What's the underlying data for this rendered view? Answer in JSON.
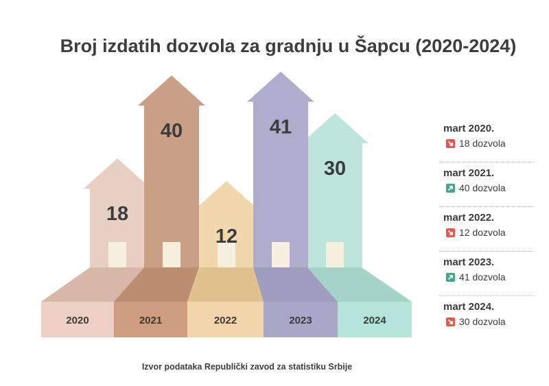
{
  "title": "Broj izdatih dozvola za gradnju u Šapcu (2020-2024)",
  "chart_data": {
    "type": "bar",
    "categories": [
      "2020",
      "2021",
      "2022",
      "2023",
      "2024"
    ],
    "values": [
      18,
      40,
      12,
      41,
      30
    ]
  },
  "colors": {
    "bars": [
      "#e8cfc4",
      "#c9a085",
      "#f0d8ac",
      "#aeadcc",
      "#bde5dc"
    ],
    "floor_top": [
      "#d8b6a8",
      "#bc8d70",
      "#e1c18e",
      "#9e9cbf",
      "#a4d4c8"
    ],
    "floor_front": [
      "#ecd0c5",
      "#ce9c7e",
      "#f2d5aa",
      "#a9a7c8",
      "#b6e3d9"
    ],
    "door": "#f7efe0",
    "down": "#e05a54",
    "up": "#4aa392"
  },
  "side": [
    {
      "label": "mart 2020.",
      "text": "18 dozvola",
      "trend": "down"
    },
    {
      "label": "mart 2021.",
      "text": "40 dozvola",
      "trend": "up"
    },
    {
      "label": "mart 2022.",
      "text": "12 dozvola",
      "trend": "down"
    },
    {
      "label": "mart 2023.",
      "text": "41 dozvola",
      "trend": "up"
    },
    {
      "label": "mart 2024.",
      "text": "30 dozvola",
      "trend": "down"
    }
  ],
  "source": "Izvor podataka Republički zavod za statistiku Srbije"
}
